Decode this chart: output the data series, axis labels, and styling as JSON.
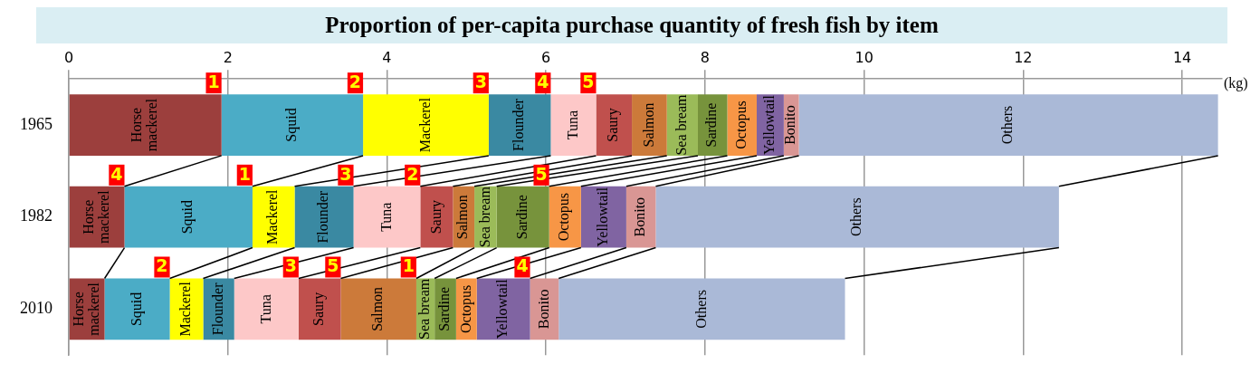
{
  "chart_data": {
    "type": "bar",
    "orientation": "horizontal",
    "stacked": true,
    "title": "Proportion of per-capita purchase quantity of fresh fish by item",
    "xlabel": "(kg)",
    "categories": [
      "1965",
      "1982",
      "2010"
    ],
    "xlim": [
      0,
      14.5
    ],
    "xticks": [
      0,
      2,
      4,
      6,
      8,
      10,
      12,
      14
    ],
    "grid": "x",
    "legend": false,
    "series": [
      {
        "name": "Horse mackerel",
        "color": "#9c3f3d",
        "values": [
          1.92,
          0.7,
          0.45
        ]
      },
      {
        "name": "Squid",
        "color": "#4bacc6",
        "values": [
          1.78,
          1.61,
          0.82
        ]
      },
      {
        "name": "Mackerel",
        "color": "#ffff00",
        "values": [
          1.58,
          0.53,
          0.42
        ]
      },
      {
        "name": "Flounder",
        "color": "#3a89a2",
        "values": [
          0.78,
          0.74,
          0.39
        ]
      },
      {
        "name": "Tuna",
        "color": "#fdc8c8",
        "values": [
          0.57,
          0.84,
          0.81
        ]
      },
      {
        "name": "Saury",
        "color": "#c0504d",
        "values": [
          0.45,
          0.41,
          0.53
        ]
      },
      {
        "name": "Salmon",
        "color": "#cc7a3a",
        "values": [
          0.44,
          0.27,
          0.95
        ]
      },
      {
        "name": "Sea bream",
        "color": "#9bbb59",
        "values": [
          0.39,
          0.28,
          0.23
        ]
      },
      {
        "name": "Sardine",
        "color": "#77933c",
        "values": [
          0.37,
          0.66,
          0.27
        ]
      },
      {
        "name": "Octopus",
        "color": "#f79646",
        "values": [
          0.37,
          0.4,
          0.26
        ]
      },
      {
        "name": "Yellowtail",
        "color": "#8064a2",
        "values": [
          0.34,
          0.57,
          0.67
        ]
      },
      {
        "name": "Bonito",
        "color": "#d99694",
        "values": [
          0.19,
          0.37,
          0.36
        ]
      },
      {
        "name": "Others",
        "color": "#aab9d7",
        "values": [
          5.27,
          5.07,
          3.6
        ]
      }
    ],
    "annotations": [
      {
        "text": "1",
        "x": 1.92,
        "y": "1965"
      },
      {
        "text": "2",
        "x": 3.7,
        "y": "1965"
      },
      {
        "text": "3",
        "x": 5.28,
        "y": "1965"
      },
      {
        "text": "4",
        "x": 6.06,
        "y": "1965"
      },
      {
        "text": "5",
        "x": 6.63,
        "y": "1965"
      },
      {
        "text": "4",
        "x": 0.7,
        "y": "1982"
      },
      {
        "text": "1",
        "x": 2.31,
        "y": "1982"
      },
      {
        "text": "3",
        "x": 3.58,
        "y": "1982"
      },
      {
        "text": "2",
        "x": 4.42,
        "y": "1982"
      },
      {
        "text": "5",
        "x": 6.04,
        "y": "1982"
      },
      {
        "text": "2",
        "x": 1.27,
        "y": "2010"
      },
      {
        "text": "3",
        "x": 2.89,
        "y": "2010"
      },
      {
        "text": "5",
        "x": 3.42,
        "y": "2010"
      },
      {
        "text": "1",
        "x": 4.37,
        "y": "2010"
      },
      {
        "text": "4",
        "x": 5.8,
        "y": "2010"
      }
    ]
  }
}
